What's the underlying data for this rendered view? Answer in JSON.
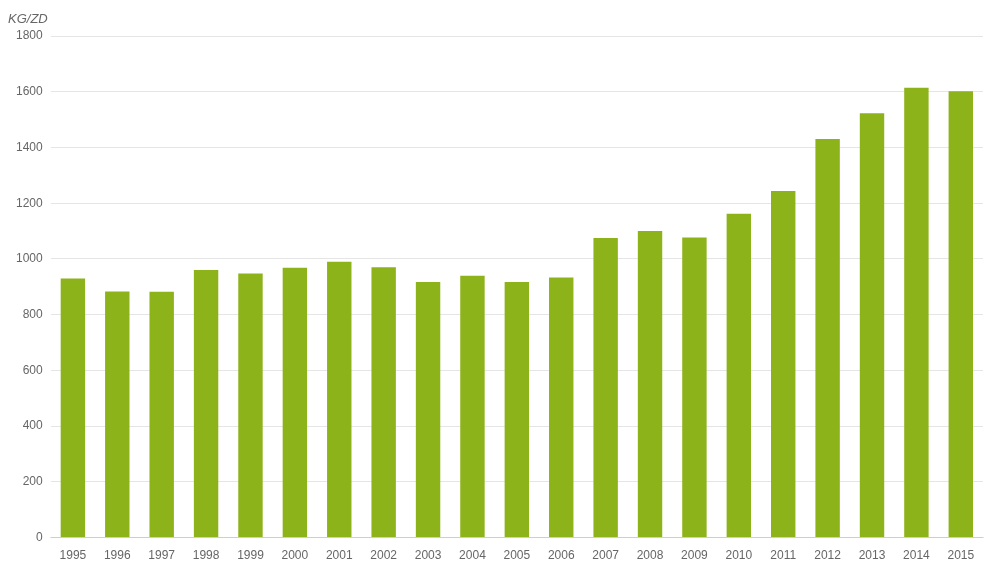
{
  "chart_data": {
    "type": "bar",
    "categories": [
      "1995",
      "1996",
      "1997",
      "1998",
      "1999",
      "2000",
      "2001",
      "2002",
      "2003",
      "2004",
      "2005",
      "2006",
      "2007",
      "2008",
      "2009",
      "2010",
      "2011",
      "2012",
      "2013",
      "2014",
      "2015"
    ],
    "values": [
      930,
      883,
      882,
      960,
      948,
      968,
      990,
      970,
      917,
      940,
      917,
      933,
      1075,
      1100,
      1077,
      1162,
      1244,
      1430,
      1523,
      1614,
      1602
    ],
    "color": "#8db31b",
    "ylabel": "KG/ZD",
    "ylim": [
      0,
      1800
    ],
    "yticks": [
      0,
      200,
      400,
      600,
      800,
      1000,
      1200,
      1400,
      1600,
      1800
    ],
    "grid": true
  }
}
